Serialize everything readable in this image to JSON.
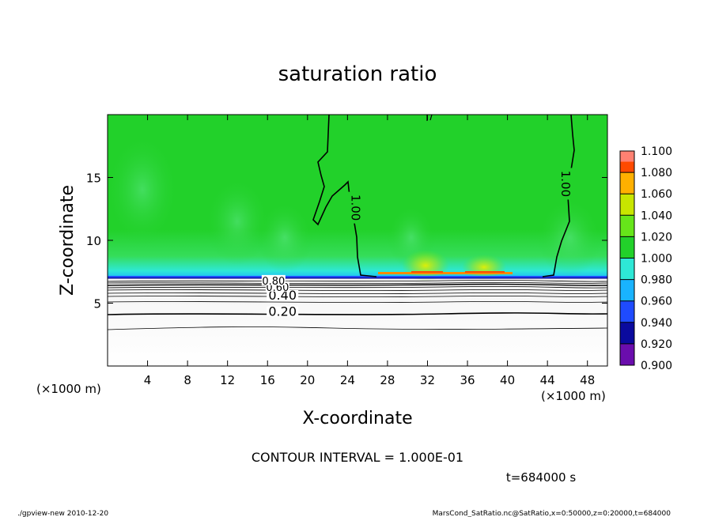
{
  "chart_data": {
    "type": "heatmap",
    "title": "saturation ratio",
    "xlabel": "X-coordinate",
    "ylabel": "Z-coordinate",
    "x_unit": "(×1000 m)",
    "y_unit": "(×1000 m)",
    "xlim": [
      0,
      50
    ],
    "ylim": [
      0,
      20
    ],
    "x_ticks": [
      4,
      8,
      12,
      16,
      20,
      24,
      28,
      32,
      36,
      40,
      44,
      48
    ],
    "y_ticks": [
      5,
      10,
      15
    ],
    "colorbar": {
      "levels": [
        0.9,
        0.92,
        0.94,
        0.96,
        0.98,
        1.0,
        1.02,
        1.04,
        1.06,
        1.08,
        1.1
      ],
      "labels": [
        "0.900",
        "0.920",
        "0.940",
        "0.960",
        "0.980",
        "1.000",
        "1.020",
        "1.040",
        "1.060",
        "1.080",
        "1.100"
      ],
      "colors": [
        "#6a0dad",
        "#0a0a9e",
        "#1f4bff",
        "#19b3ff",
        "#2ee8d6",
        "#22d12a",
        "#66e61a",
        "#c8e600",
        "#ffb000",
        "#ff4a00",
        "#ff8f8f"
      ]
    },
    "contour_labels": [
      {
        "text": "1.00",
        "x": 24.8,
        "z": 12.6
      },
      {
        "text": "1.00",
        "x": 45.8,
        "z": 14.5
      },
      {
        "text": "0.20",
        "x": 17.5,
        "z": 4.3
      },
      {
        "text": "0.40",
        "x": 17.5,
        "z": 5.6
      },
      {
        "text": "0.60",
        "x": 17.0,
        "z": 6.3
      },
      {
        "text": "0.80",
        "x": 16.6,
        "z": 6.8
      }
    ],
    "boundary_z": 7.0,
    "contour_interval": "CONTOUR INTERVAL = 1.000E-01",
    "time_label": "t=684000 s"
  },
  "footer": {
    "left": "./gpview-new  2010-12-20",
    "right": "MarsCond_SatRatio.nc@SatRatio,x=0:50000,z=0:20000,t=684000"
  }
}
